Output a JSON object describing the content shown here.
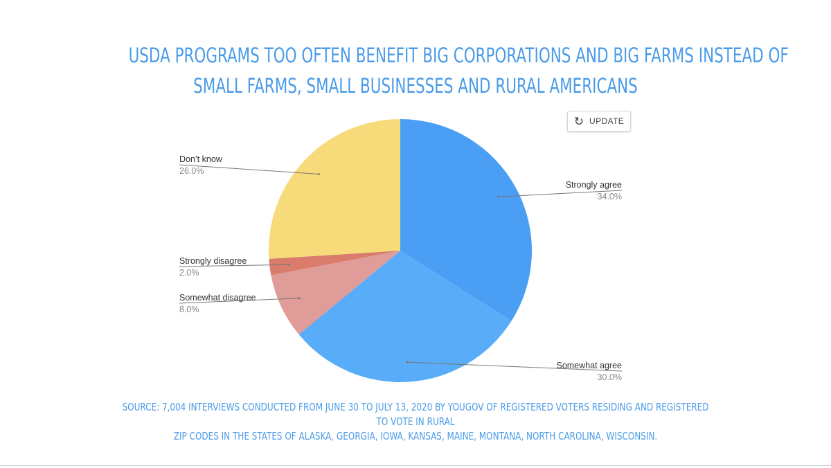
{
  "title": {
    "line1": "USDA PROGRAMS TOO OFTEN BENEFIT BIG CORPORATIONS AND BIG FARMS INSTEAD OF",
    "line2": "SMALL FARMS, SMALL BUSINESSES AND RURAL AMERICANS"
  },
  "toolbar": {
    "update_label": "UPDATE",
    "update_icon": "refresh-icon"
  },
  "source": {
    "line1": "SOURCE: 7,004 INTERVIEWS CONDUCTED FROM JUNE 30 TO JULY 13, 2020 BY YOUGOV OF REGISTERED VOTERS RESIDING AND REGISTERED TO VOTE IN RURAL",
    "line2": "ZIP CODES IN THE STATES OF ALASKA, GEORGIA, IOWA, KANSAS, MAINE, MONTANA, NORTH CAROLINA, WISCONSIN."
  },
  "colors": {
    "title": "#4a9be8",
    "source": "#4a9be8"
  },
  "chart_data": {
    "type": "pie",
    "title": "USDA PROGRAMS TOO OFTEN BENEFIT BIG CORPORATIONS AND BIG FARMS INSTEAD OF SMALL FARMS, SMALL BUSINESSES AND RURAL AMERICANS",
    "slices": [
      {
        "label": "Strongly agree",
        "value": 34.0,
        "display": "34.0%",
        "color": "#4a9ff5"
      },
      {
        "label": "Somewhat agree",
        "value": 30.0,
        "display": "30.0%",
        "color": "#58acf8"
      },
      {
        "label": "Somewhat disagree",
        "value": 8.0,
        "display": "8.0%",
        "color": "#e09c98"
      },
      {
        "label": "Strongly disagree",
        "value": 2.0,
        "display": "2.0%",
        "color": "#d97c6c"
      },
      {
        "label": "Don’t know",
        "value": 26.0,
        "display": "26.0%",
        "color": "#f7db7b"
      }
    ],
    "start": "12 o'clock",
    "direction": "clockwise"
  }
}
